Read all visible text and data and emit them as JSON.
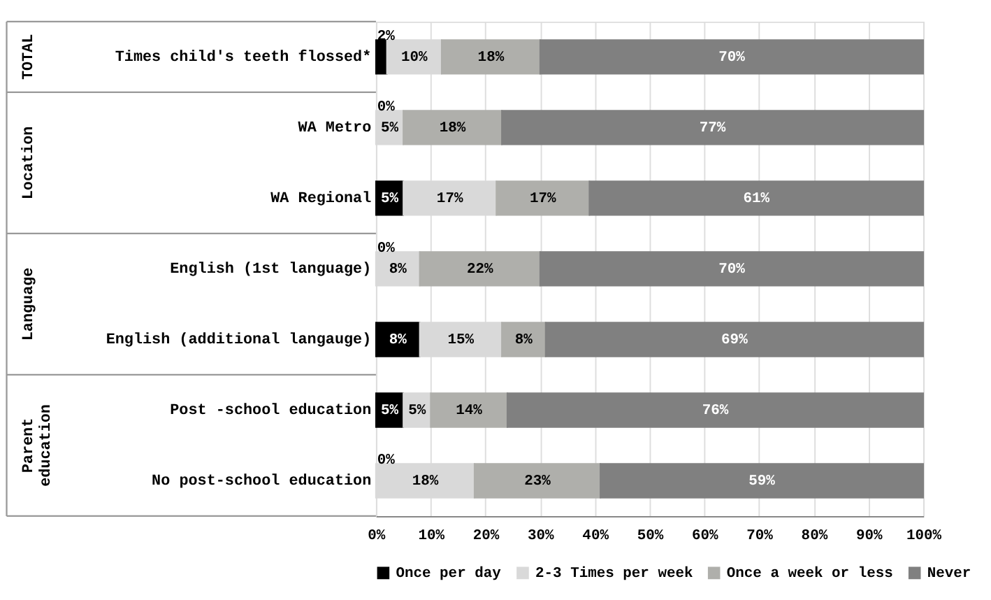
{
  "chart_data": {
    "type": "bar",
    "orientation": "horizontal",
    "stacked": true,
    "categories": [
      "Times child's teeth flossed*",
      "WA Metro",
      "WA Regional",
      "English (1st language)",
      "English (additional langauge)",
      "Post -school education",
      "No post-school education"
    ],
    "series": [
      {
        "name": "Once per day",
        "color": "#000000",
        "values": [
          2,
          0,
          5,
          0,
          8,
          5,
          0
        ],
        "value_labels": [
          "2%",
          "0%",
          "5%",
          "0%",
          "8%",
          "5%",
          "0%"
        ]
      },
      {
        "name": "2-3 Times per week",
        "color": "#d9d9d9",
        "values": [
          10,
          5,
          17,
          8,
          15,
          5,
          18
        ],
        "value_labels": [
          "10%",
          "5%",
          "17%",
          "8%",
          "15%",
          "5%",
          "18%"
        ]
      },
      {
        "name": "Once a week or less",
        "color": "#afafab",
        "values": [
          18,
          18,
          17,
          22,
          8,
          14,
          23
        ],
        "value_labels": [
          "18%",
          "18%",
          "17%",
          "22%",
          "8%",
          "14%",
          "23%"
        ]
      },
      {
        "name": "Never",
        "color": "#808080",
        "values": [
          70,
          77,
          61,
          70,
          69,
          76,
          59
        ],
        "value_labels": [
          "70%",
          "77%",
          "61%",
          "70%",
          "69%",
          "76%",
          "59%"
        ]
      }
    ],
    "xlim": [
      0,
      100
    ],
    "xticks": [
      {
        "value": 0,
        "label": "0%"
      },
      {
        "value": 10,
        "label": "10%"
      },
      {
        "value": 20,
        "label": "20%"
      },
      {
        "value": 30,
        "label": "30%"
      },
      {
        "value": 40,
        "label": "40%"
      },
      {
        "value": 50,
        "label": "50%"
      },
      {
        "value": 60,
        "label": "60%"
      },
      {
        "value": 70,
        "label": "70%"
      },
      {
        "value": 80,
        "label": "80%"
      },
      {
        "value": 90,
        "label": "90%"
      },
      {
        "value": 100,
        "label": "100%"
      }
    ],
    "grid": "x",
    "legend": "bottom",
    "annotations": [
      "TOTAL",
      "Location",
      "Language",
      "Parent education"
    ]
  }
}
